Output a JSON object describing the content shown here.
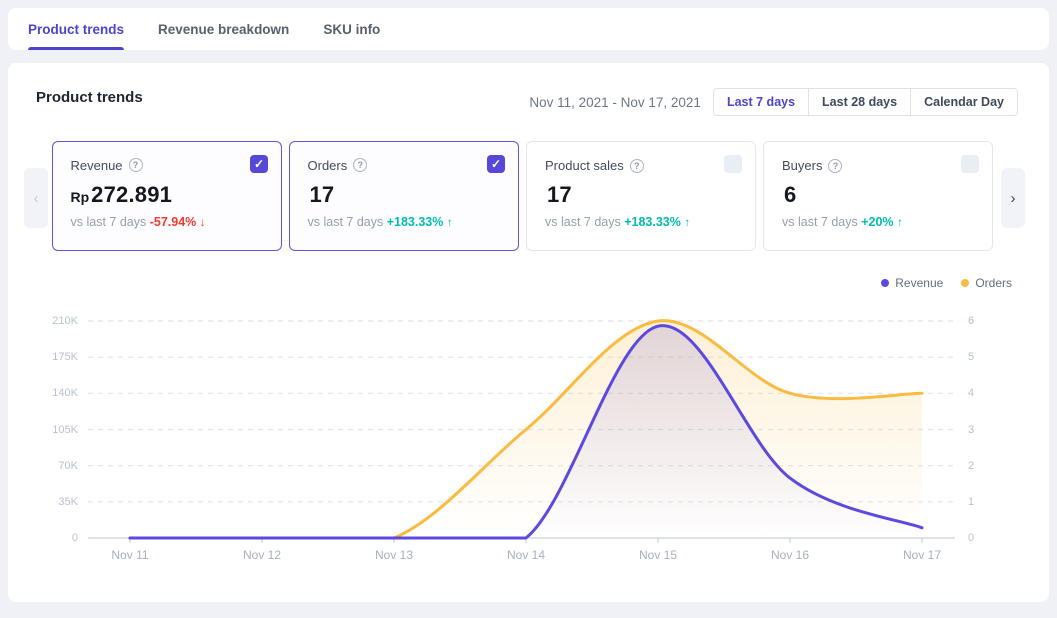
{
  "colors": {
    "accent": "#4e43ce",
    "revenue_line": "#5b49e0",
    "orders_line": "#f9bb40",
    "positive": "#00bdae",
    "negative": "#f4392f",
    "page_background": "#f0f1f6"
  },
  "tabs": {
    "items": [
      {
        "label": "Product trends",
        "active": true
      },
      {
        "label": "Revenue breakdown",
        "active": false
      },
      {
        "label": "SKU info",
        "active": false
      }
    ]
  },
  "header": {
    "title": "Product trends",
    "date_range": "Nov 11, 2021 - Nov 17, 2021",
    "range_buttons": [
      {
        "label": "Last 7 days",
        "active": true
      },
      {
        "label": "Last 28 days",
        "active": false
      },
      {
        "label": "Calendar Day",
        "active": false
      }
    ]
  },
  "carousel": {
    "prev": "‹",
    "next": "›"
  },
  "cards": [
    {
      "title": "Revenue",
      "help": "?",
      "prefix": "Rp",
      "value": "272.891",
      "compare_label": "vs last 7 days",
      "delta": "-57.94%",
      "arrow": "↓",
      "delta_color": "#f4392f",
      "checked": true
    },
    {
      "title": "Orders",
      "help": "?",
      "prefix": "",
      "value": "17",
      "compare_label": "vs last 7 days",
      "delta": "+183.33%",
      "arrow": "↑",
      "delta_color": "#00bdae",
      "checked": true
    },
    {
      "title": "Product sales",
      "help": "?",
      "prefix": "",
      "value": "17",
      "compare_label": "vs last 7 days",
      "delta": "+183.33%",
      "arrow": "↑",
      "delta_color": "#00bdae",
      "checked": false
    },
    {
      "title": "Buyers",
      "help": "?",
      "prefix": "",
      "value": "6",
      "compare_label": "vs last 7 days",
      "delta": "+20%",
      "arrow": "↑",
      "delta_color": "#00bdae",
      "checked": false
    }
  ],
  "legend": [
    {
      "label": "Revenue",
      "color": "#5b49e0"
    },
    {
      "label": "Orders",
      "color": "#f9bb40"
    }
  ],
  "chart_data": {
    "type": "line",
    "title": "",
    "categories": [
      "Nov 11",
      "Nov 12",
      "Nov 13",
      "Nov 14",
      "Nov 15",
      "Nov 16",
      "Nov 17"
    ],
    "series": [
      {
        "name": "Revenue",
        "axis": "left",
        "color": "#5b49e0",
        "fill": "rgba(99,85,216,0.18)",
        "values": [
          0,
          0,
          0,
          0,
          205000,
          58000,
          9891
        ]
      },
      {
        "name": "Orders",
        "axis": "right",
        "color": "#f9bb40",
        "fill": "rgba(249,187,64,0.22)",
        "values": [
          0,
          0,
          0,
          3,
          6,
          4,
          4
        ]
      }
    ],
    "y_left": {
      "max": 210000,
      "ticks": [
        "210K",
        "175K",
        "140K",
        "105K",
        "70K",
        "35K",
        "0"
      ]
    },
    "y_right": {
      "max": 6,
      "ticks": [
        "6",
        "5",
        "4",
        "3",
        "2",
        "1",
        "0"
      ]
    },
    "grid": "horizontal-dashed",
    "legend_position": "top-right"
  }
}
